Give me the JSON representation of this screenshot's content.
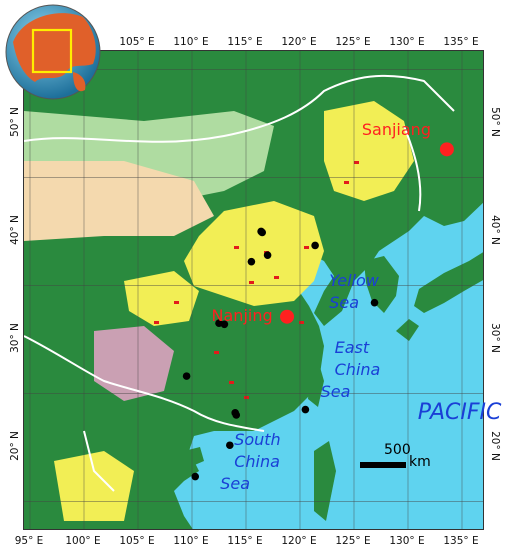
{
  "map": {
    "lon_ticks_top": [
      "105° E",
      "110° E",
      "115° E",
      "120° E",
      "125° E",
      "130° E",
      "135° E"
    ],
    "lon_ticks_bottom": [
      "95° E",
      "100° E",
      "105° E",
      "110° E",
      "115° E",
      "120° E",
      "125° E",
      "130° E",
      "135° E"
    ],
    "lat_ticks_left": [
      "50° N",
      "40° N",
      "30° N",
      "20° N"
    ],
    "lat_ticks_right": [
      "50° N",
      "40° N",
      "30° N",
      "20° N"
    ],
    "cities": [
      {
        "name": "Sanjiang",
        "lon": 133.6,
        "lat": 47.6
      },
      {
        "name": "Nanjing",
        "lon": 118.8,
        "lat": 32.1
      }
    ],
    "city_color": "#ff2020",
    "sites": [
      {
        "lon": 116.4,
        "lat": 40.0
      },
      {
        "lon": 116.5,
        "lat": 39.9
      },
      {
        "lon": 117.0,
        "lat": 37.8
      },
      {
        "lon": 115.5,
        "lat": 37.2
      },
      {
        "lon": 121.4,
        "lat": 38.7
      },
      {
        "lon": 126.9,
        "lat": 33.4
      },
      {
        "lon": 112.5,
        "lat": 31.5
      },
      {
        "lon": 113.0,
        "lat": 31.4
      },
      {
        "lon": 109.5,
        "lat": 26.6
      },
      {
        "lon": 114.0,
        "lat": 23.2
      },
      {
        "lon": 114.1,
        "lat": 23.0
      },
      {
        "lon": 120.5,
        "lat": 23.5
      },
      {
        "lon": 113.5,
        "lat": 20.2
      },
      {
        "lon": 110.3,
        "lat": 17.3
      }
    ],
    "sea_labels": [
      {
        "lines": [
          "Yellow",
          "Sea"
        ],
        "lon": 122.8,
        "lat": 36.2
      },
      {
        "lines": [
          "East",
          "China",
          "Sea"
        ],
        "lon": 123.3,
        "lat": 30.0
      },
      {
        "lines": [
          "South",
          "China",
          "Sea"
        ],
        "lon": 114.0,
        "lat": 21.5
      },
      {
        "lines": [
          "PACIFIC"
        ],
        "lon": 131.0,
        "lat": 24.3
      }
    ],
    "sea_label_color": "#1a3fd6",
    "scale_bar": {
      "value": "500",
      "unit": "km"
    },
    "colors": {
      "ocean": "#5fd3ef",
      "forest": "#2a8a3e",
      "grassland": "#b6e0a6",
      "cropland": "#f2ee55",
      "desert": "#f4d9ae",
      "shrub": "#e6a3c8",
      "urban": "#e21b1b",
      "boundary": "#ffffff"
    }
  }
}
